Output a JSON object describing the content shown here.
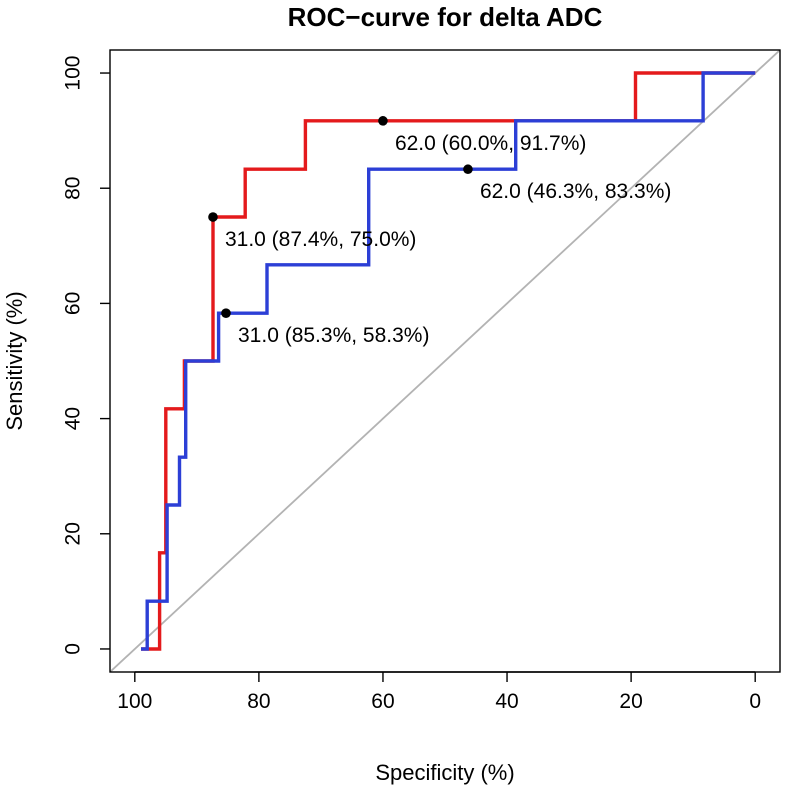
{
  "chart_data": {
    "type": "line",
    "title": "ROC−curve for delta ADC",
    "xlabel": "Specificity (%)",
    "ylabel": "Sensitivity (%)",
    "xlim": [
      104,
      -4
    ],
    "ylim": [
      -4,
      104
    ],
    "x_ticks": [
      100,
      80,
      60,
      40,
      20,
      0
    ],
    "y_ticks": [
      0,
      20,
      40,
      60,
      80,
      100
    ],
    "x_tick_labels": [
      "100",
      "80",
      "60",
      "40",
      "20",
      "0"
    ],
    "y_tick_labels": [
      "0",
      "20",
      "40",
      "60",
      "80",
      "100"
    ],
    "x_reversed": true,
    "grid": false,
    "diagonal_reference": true,
    "colors": {
      "red": "#e41a1c",
      "blue": "#2c3fd6",
      "diagonal": "#b3b3b3"
    },
    "series": [
      {
        "color": "#e41a1c",
        "points": [
          [
            99.0,
            0
          ],
          [
            96.0,
            0
          ],
          [
            96.0,
            16.7
          ],
          [
            95.0,
            16.7
          ],
          [
            95.0,
            41.7
          ],
          [
            92.0,
            41.7
          ],
          [
            92.0,
            50.0
          ],
          [
            87.4,
            50.0
          ],
          [
            87.4,
            75.0
          ],
          [
            82.2,
            75.0
          ],
          [
            82.2,
            83.3
          ],
          [
            72.5,
            83.3
          ],
          [
            72.5,
            91.7
          ],
          [
            60.0,
            91.7
          ],
          [
            19.3,
            91.7
          ],
          [
            19.3,
            100
          ],
          [
            0,
            100
          ]
        ],
        "cutoff": {
          "x": 87.4,
          "y": 75.0,
          "label": "31.0 (87.4%, 75.0%)"
        },
        "cutoff2": {
          "x": 60.0,
          "y": 91.7,
          "label": "62.0 (60.0%, 91.7%)"
        }
      },
      {
        "color": "#2c3fd6",
        "points": [
          [
            99.0,
            0
          ],
          [
            98.0,
            0
          ],
          [
            98.0,
            8.3
          ],
          [
            94.8,
            8.3
          ],
          [
            94.8,
            25.0
          ],
          [
            92.8,
            25.0
          ],
          [
            92.8,
            33.3
          ],
          [
            91.8,
            33.3
          ],
          [
            91.8,
            50.0
          ],
          [
            86.5,
            50.0
          ],
          [
            86.5,
            58.3
          ],
          [
            78.7,
            58.3
          ],
          [
            78.7,
            66.7
          ],
          [
            62.3,
            66.7
          ],
          [
            62.3,
            83.3
          ],
          [
            38.6,
            83.3
          ],
          [
            38.6,
            91.7
          ],
          [
            8.4,
            91.7
          ],
          [
            8.4,
            100
          ],
          [
            0,
            100
          ]
        ],
        "cutoff": {
          "x": 85.3,
          "y": 58.3,
          "label": "31.0 (85.3%, 58.3%)"
        },
        "cutoff2": {
          "x": 46.3,
          "y": 83.3,
          "label": "62.0 (46.3%, 83.3%)"
        }
      }
    ]
  }
}
